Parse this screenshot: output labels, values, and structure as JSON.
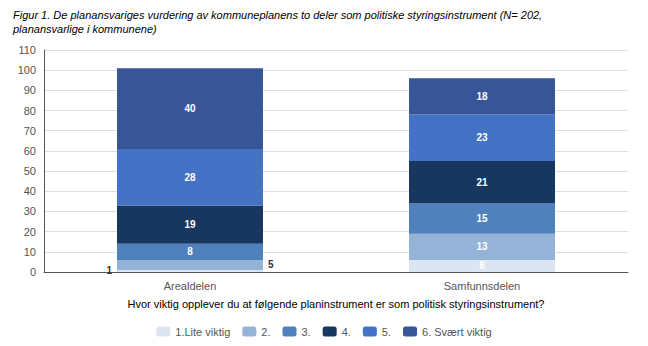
{
  "chart_data": {
    "type": "bar",
    "title": "Figur 1. De planansvariges vurdering av kommuneplanens to deler som politiske styringsinstrument (N= 202,",
    "subtitle": "planansvarlige i kommunene)",
    "xlabel": "Hvor viktig opplever du at følgende planinstrument er som politisk styringsinstrument?",
    "categories": [
      "Arealdelen",
      "Samfunnsdelen"
    ],
    "series": [
      {
        "name": "1.Lite viktig",
        "color": "#dce6f1",
        "values": [
          1,
          6
        ]
      },
      {
        "name": "2.",
        "color": "#95b3d7",
        "values": [
          5,
          13
        ]
      },
      {
        "name": "3.",
        "color": "#4f81bd",
        "values": [
          8,
          15
        ]
      },
      {
        "name": "4.",
        "color": "#17375e",
        "values": [
          19,
          21
        ]
      },
      {
        "name": "5.",
        "color": "#4472c4",
        "values": [
          28,
          23
        ]
      },
      {
        "name": "6. Svært viktig",
        "color": "#375597",
        "values": [
          40,
          18
        ]
      }
    ],
    "stacked": true,
    "ylim": [
      0,
      110
    ],
    "yticks": [
      0,
      10,
      20,
      30,
      40,
      50,
      60,
      70,
      80,
      90,
      100,
      110
    ],
    "grid": true,
    "legend": "bottom",
    "data_labels": true
  }
}
